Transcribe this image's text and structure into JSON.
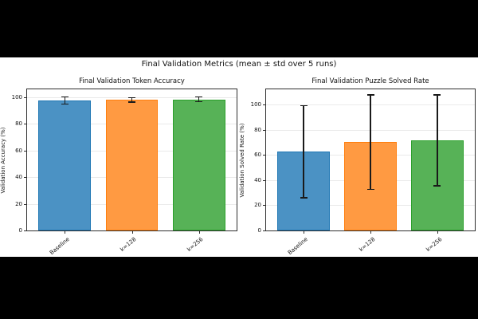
{
  "figure": {
    "title": "Final Validation Metrics (mean ± std over 5 runs)",
    "background": "#ffffff",
    "letterbox": "#000000"
  },
  "chart_data": [
    {
      "type": "bar",
      "title": "Final Validation Token Accuracy",
      "ylabel": "Validation Accuracy (%)",
      "xlabel": "",
      "categories": [
        "Baseline",
        "k=128",
        "k=256"
      ],
      "values": [
        97.6,
        98.1,
        98.5
      ],
      "errors": [
        2.6,
        1.7,
        1.7
      ],
      "ylim": [
        0,
        106
      ],
      "yticks": [
        0,
        20,
        40,
        60,
        80,
        100
      ],
      "grid": true,
      "bar_fill": [
        "#4b92c4",
        "#ff9a42",
        "#57b257"
      ],
      "bar_edge": [
        "#1f77b4",
        "#ff7f0e",
        "#2ca02c"
      ],
      "error_color": "#1a1a1a"
    },
    {
      "type": "bar",
      "title": "Final Validation Puzzle Solved Rate",
      "ylabel": "Validation Solved Rate (%)",
      "xlabel": "",
      "categories": [
        "Baseline",
        "k=128",
        "k=256"
      ],
      "values": [
        62.5,
        70.0,
        71.5
      ],
      "errors": [
        36.5,
        37.5,
        36.0
      ],
      "ylim": [
        0,
        112
      ],
      "yticks": [
        0,
        20,
        40,
        60,
        80,
        100
      ],
      "grid": true,
      "bar_fill": [
        "#4b92c4",
        "#ff9a42",
        "#57b257"
      ],
      "bar_edge": [
        "#1f77b4",
        "#ff7f0e",
        "#2ca02c"
      ],
      "error_color": "#1a1a1a"
    }
  ]
}
